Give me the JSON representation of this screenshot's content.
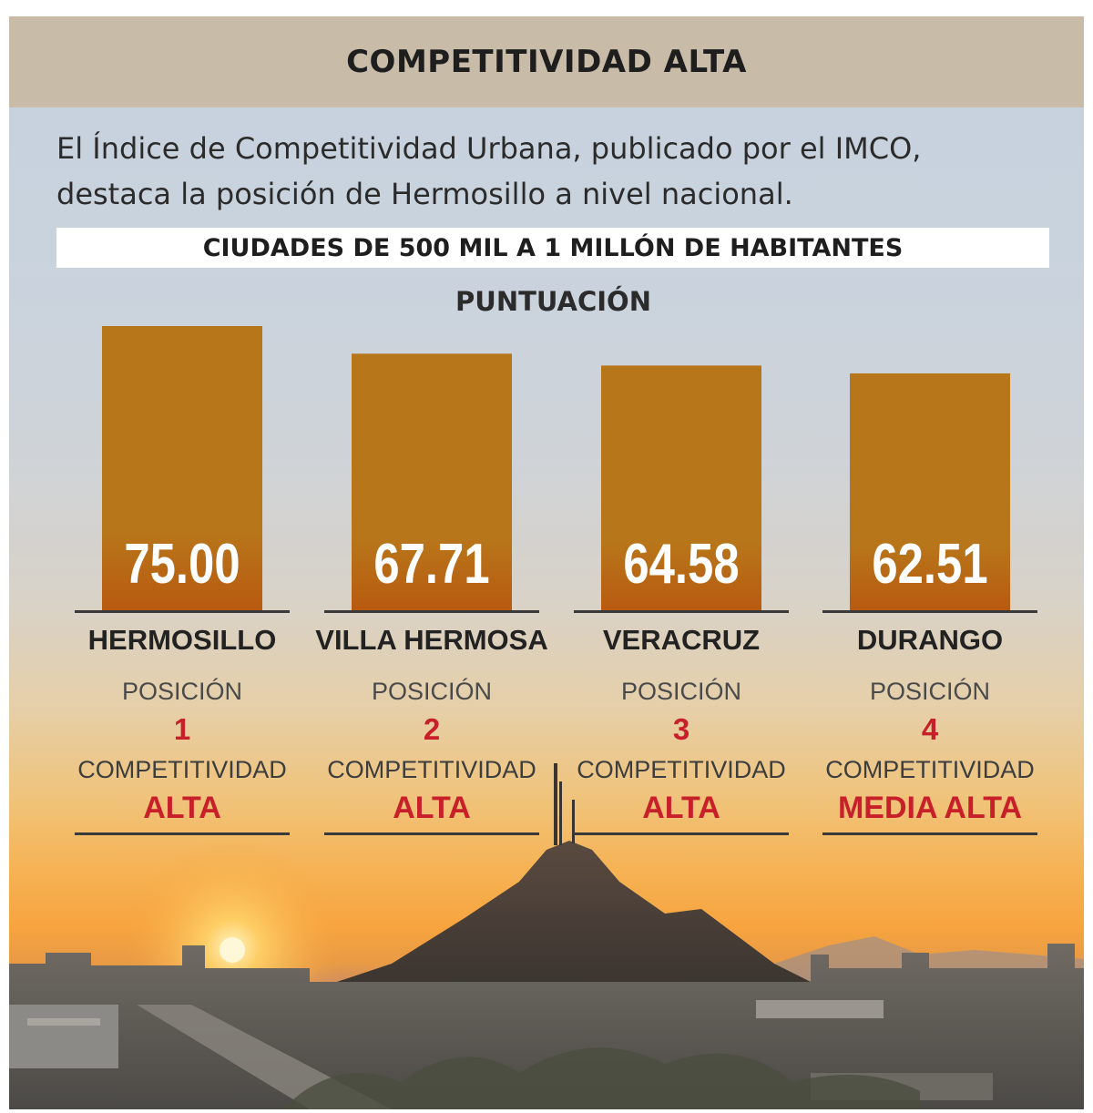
{
  "header": {
    "title": "COMPETITIVIDAD ALTA"
  },
  "intro": {
    "line1": "El Índice de Competitividad Urbana, publicado por el IMCO,",
    "line2": "destaca la posición de Hermosillo a nivel nacional."
  },
  "labels": {
    "position": "POSICIÓN",
    "competitiveness": "COMPETITIVIDAD"
  },
  "colors": {
    "bar_top": "#b8761a",
    "bar_bottom": "#b85a10",
    "rank_text": "#c8202a",
    "header_bg": "#c8bba7"
  },
  "chart_data": {
    "type": "bar",
    "title": "CIUDADES DE 500 MIL A 1 MILLÓN DE HABITANTES",
    "ylabel": "PUNTUACIÓN",
    "categories": [
      "HERMOSILLO",
      "VILLA HERMOSA",
      "VERACRUZ",
      "DURANGO"
    ],
    "values": [
      75.0,
      67.71,
      64.58,
      62.51
    ],
    "value_labels": [
      "75.00",
      "67.71",
      "64.58",
      "62.51"
    ],
    "positions": [
      "1",
      "2",
      "3",
      "4"
    ],
    "competitiveness": [
      "ALTA",
      "ALTA",
      "ALTA",
      "MEDIA ALTA"
    ],
    "ylim": [
      0,
      75
    ],
    "grid": false
  }
}
